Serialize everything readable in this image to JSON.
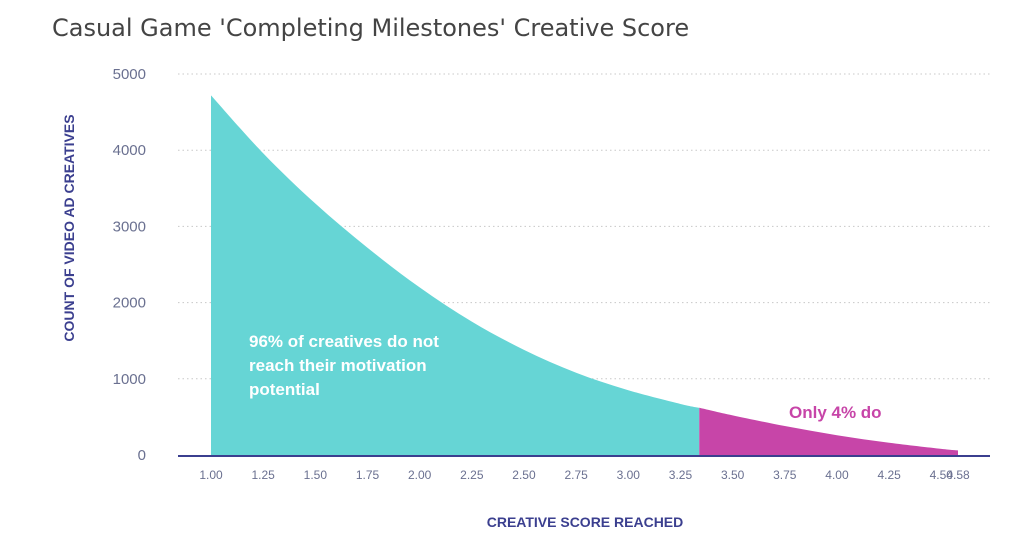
{
  "chart_data": {
    "type": "area",
    "title": "Casual Game 'Completing Milestones' Creative Score",
    "xlabel": "CREATIVE SCORE REACHED",
    "ylabel": "COUNT OF VIDEO AD CREATIVES",
    "xlim": [
      1.0,
      4.58
    ],
    "ylim": [
      0,
      5000
    ],
    "x_ticks": [
      "1.00",
      "1.25",
      "1.50",
      "1.75",
      "2.00",
      "2.25",
      "2.50",
      "2.75",
      "3.00",
      "3.25",
      "3.50",
      "3.75",
      "4.00",
      "4.25",
      "4.50",
      "4.58"
    ],
    "y_ticks": [
      "0",
      "1000",
      "2000",
      "3000",
      "4000",
      "5000"
    ],
    "grid": true,
    "split_x": 3.34,
    "series": [
      {
        "color": "#66d5d5",
        "x": [
          1.0,
          1.25,
          1.5,
          1.75,
          2.0,
          2.25,
          2.5,
          2.75,
          3.0,
          3.25,
          3.34
        ],
        "y": [
          4720,
          3960,
          3300,
          2720,
          2200,
          1750,
          1380,
          1080,
          850,
          670,
          620
        ]
      },
      {
        "color": "#c745a8",
        "x": [
          3.34,
          3.5,
          3.75,
          4.0,
          4.25,
          4.5,
          4.58
        ],
        "y": [
          620,
          520,
          380,
          260,
          160,
          80,
          60
        ]
      }
    ],
    "annotations": [
      {
        "lines": [
          "96% of creatives do not",
          "reach their motivation",
          "potential"
        ],
        "color": "#ffffff"
      },
      {
        "lines": [
          "Only 4% do"
        ],
        "color": "#c745a8"
      }
    ],
    "axis_color": "#3b3f8f"
  }
}
